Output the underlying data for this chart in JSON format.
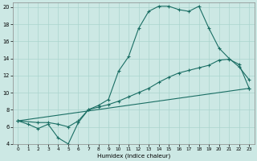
{
  "xlabel": "Humidex (Indice chaleur)",
  "bg_color": "#cce8e4",
  "grid_color": "#aad4ce",
  "line_color": "#1a6e64",
  "xlim": [
    -0.5,
    23.5
  ],
  "ylim": [
    4,
    20.5
  ],
  "xticks": [
    0,
    1,
    2,
    3,
    4,
    5,
    6,
    7,
    8,
    9,
    10,
    11,
    12,
    13,
    14,
    15,
    16,
    17,
    18,
    19,
    20,
    21,
    22,
    23
  ],
  "yticks": [
    4,
    6,
    8,
    10,
    12,
    14,
    16,
    18,
    20
  ],
  "line1_x": [
    0,
    1,
    2,
    3,
    4,
    5,
    6,
    7,
    8,
    9,
    10,
    11,
    12,
    13,
    14,
    15,
    16,
    17,
    18,
    19,
    20,
    21,
    22,
    23
  ],
  "line1_y": [
    6.7,
    6.3,
    5.8,
    6.3,
    4.7,
    4.0,
    6.5,
    8.0,
    8.5,
    9.2,
    12.5,
    14.2,
    17.5,
    19.5,
    20.1,
    20.1,
    19.7,
    19.5,
    20.1,
    17.5,
    15.2,
    14.0,
    13.0,
    11.5
  ],
  "line2_x": [
    0,
    2,
    3,
    4,
    5,
    6,
    7,
    8,
    9,
    10,
    11,
    12,
    13,
    14,
    15,
    16,
    17,
    18,
    19,
    20,
    21,
    22,
    23
  ],
  "line2_y": [
    6.7,
    6.5,
    6.5,
    6.3,
    6.0,
    6.7,
    8.0,
    8.3,
    8.6,
    9.0,
    9.5,
    10.0,
    10.5,
    11.2,
    11.8,
    12.3,
    12.6,
    12.9,
    13.2,
    13.8,
    13.9,
    13.3,
    10.5
  ],
  "line3_x": [
    0,
    23
  ],
  "line3_y": [
    6.7,
    10.5
  ]
}
